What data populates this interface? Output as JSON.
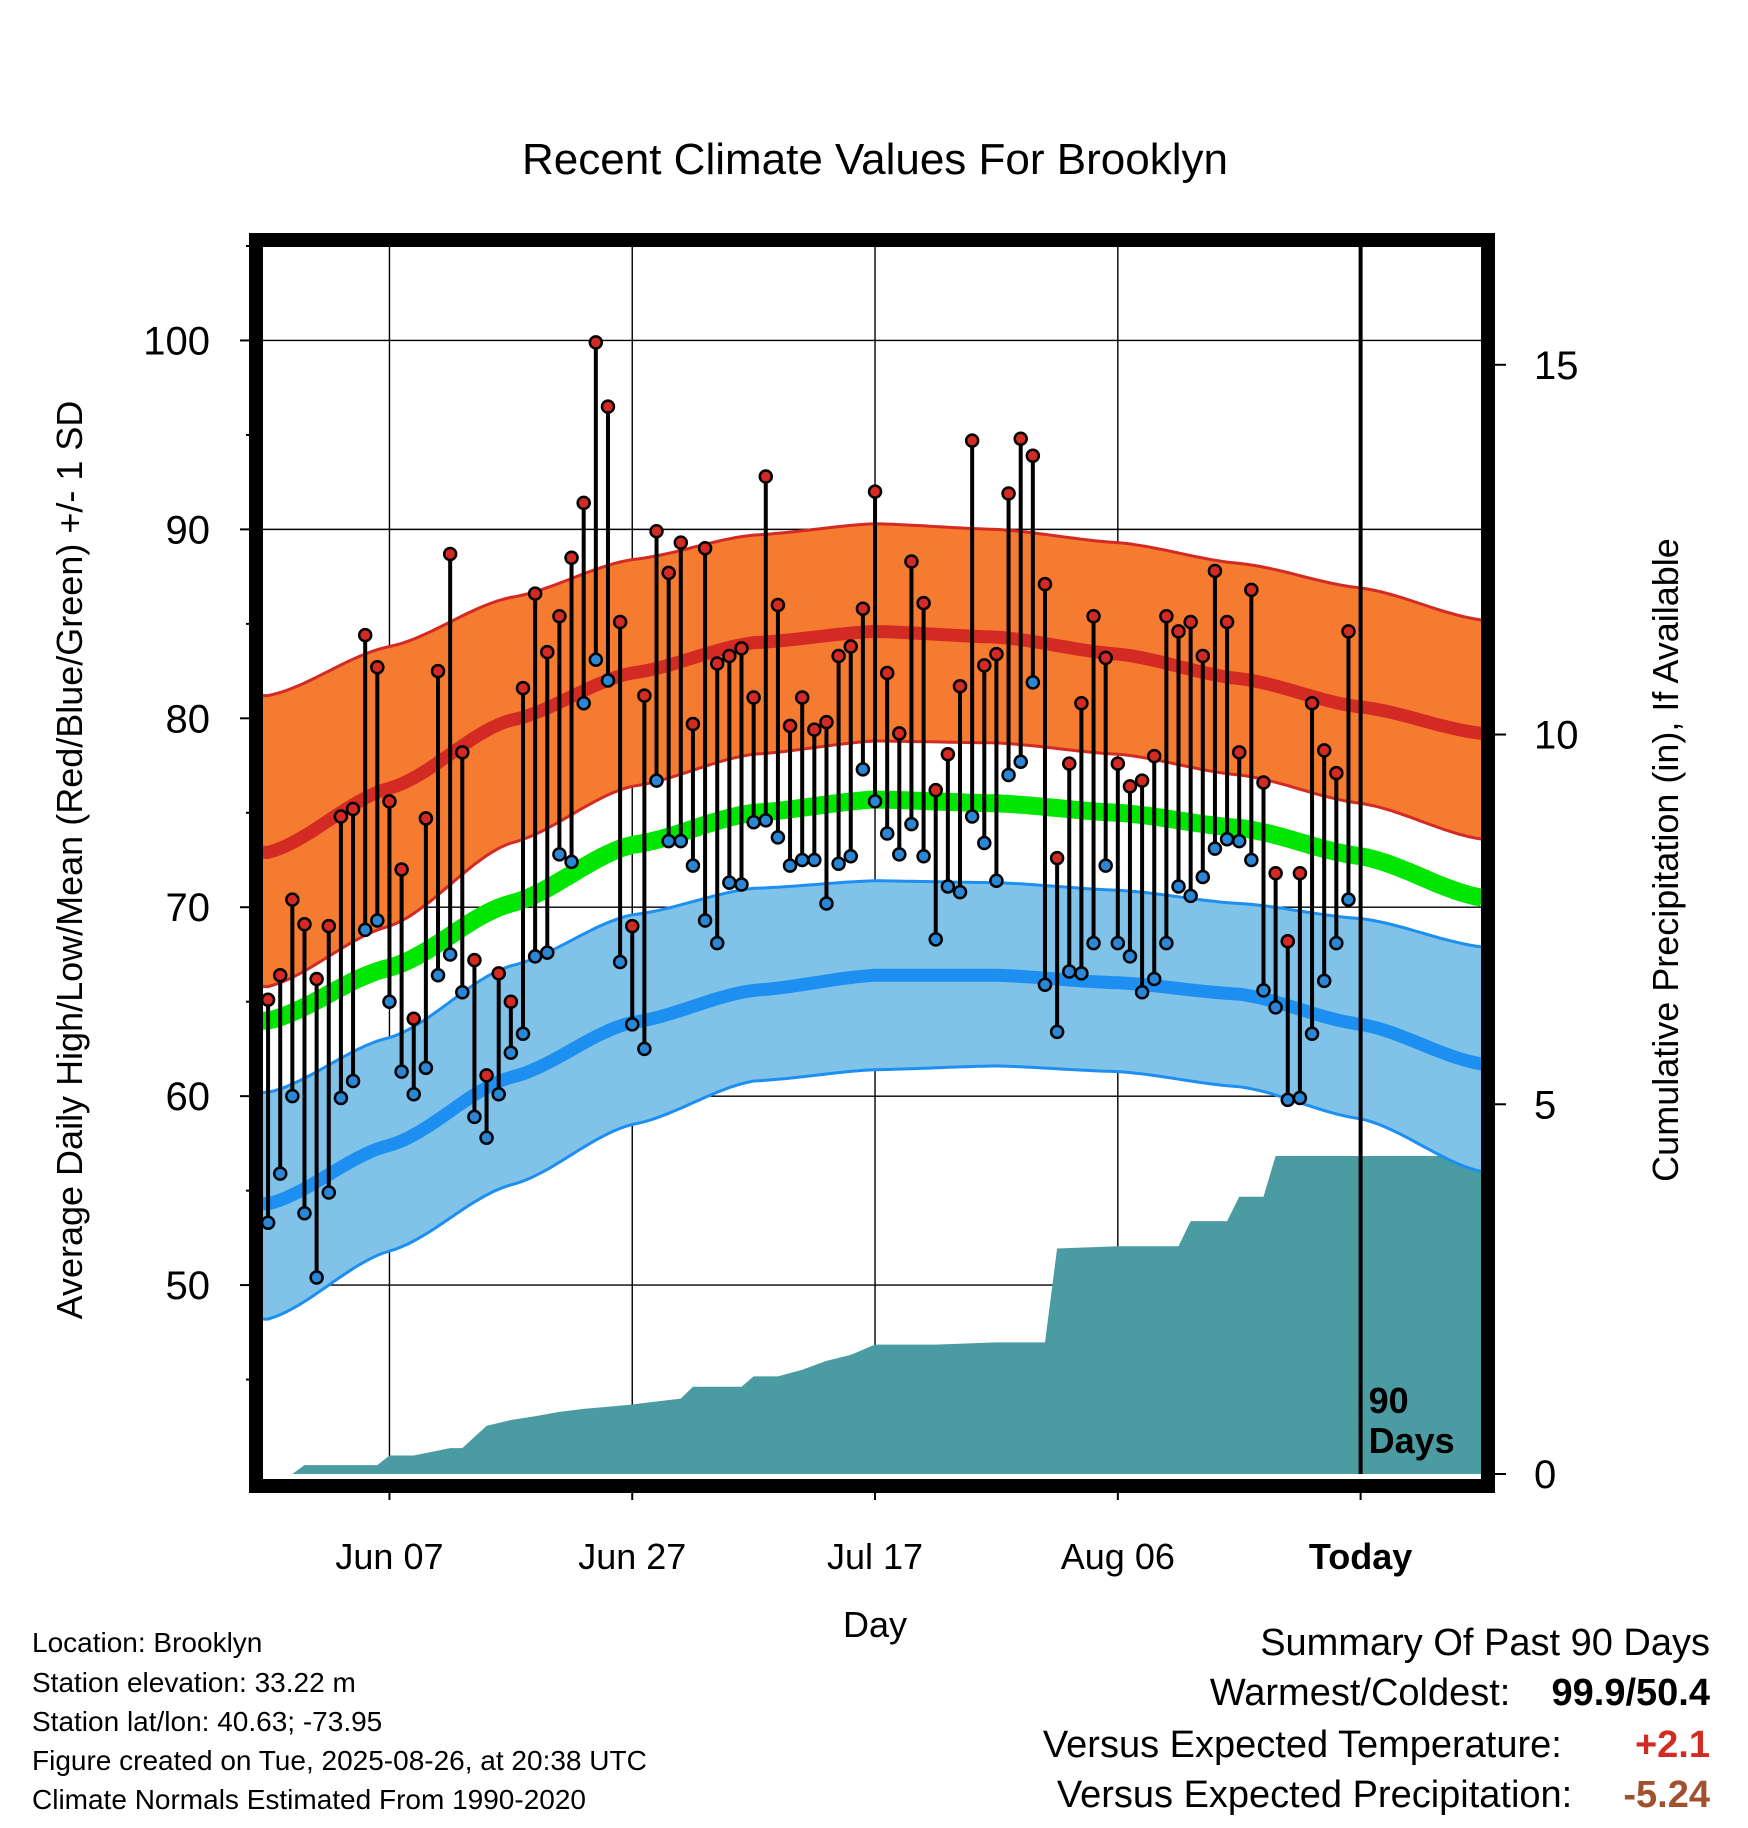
{
  "chart_data": {
    "type": "line",
    "title": "Recent Climate Values For Brooklyn",
    "xlabel": "Day",
    "ylabel": "Average Daily High/Low/Mean (Red/Blue/Green) +/- 1 SD",
    "y2label": "Cumulative Precipitation (in), If Available",
    "x_tick_labels": [
      "Jun 07",
      "Jun 27",
      "Jul 17",
      "Aug 06",
      "Today"
    ],
    "x_tick_days": [
      11,
      31,
      51,
      71,
      91
    ],
    "y_ticks": [
      50,
      60,
      70,
      80,
      90,
      100
    ],
    "y_tick_labels": [
      "50",
      "60",
      "70",
      "80",
      "90",
      "100"
    ],
    "ylim": [
      40,
      105
    ],
    "y2_ticks": [
      0,
      5,
      10,
      15
    ],
    "y2_tick_labels": [
      "0",
      "5",
      "10",
      "15"
    ],
    "y2lim": [
      0,
      15.2
    ],
    "xlim": [
      0.5,
      101
    ],
    "today_marker_label": "90 Days",
    "grid": true,
    "colors": {
      "high_band": "#f47b30",
      "high_mean": "#d42a24",
      "high_edge": "#d42a24",
      "low_band": "#80c2e8",
      "low_mean": "#1d8ff0",
      "low_edge": "#1d8ff0",
      "mean_line": "#00e600",
      "precip": "#4a9ba2",
      "high_point": "#d42a24",
      "low_point": "#2a87d6",
      "frame": "#000000"
    },
    "normals": {
      "days": [
        1,
        11,
        21,
        31,
        41,
        51,
        61,
        71,
        81,
        91,
        101
      ],
      "high_mean": [
        72.9,
        76.3,
        79.9,
        82.4,
        84.0,
        84.6,
        84.3,
        83.4,
        82.1,
        80.6,
        79.2
      ],
      "high_upper": [
        81.2,
        83.8,
        86.4,
        88.4,
        89.7,
        90.3,
        90.0,
        89.3,
        88.2,
        86.9,
        85.2
      ],
      "high_lower": [
        65.8,
        69.0,
        73.4,
        76.4,
        78.1,
        78.8,
        78.7,
        78.1,
        77.0,
        75.5,
        73.6
      ],
      "mean": [
        64.0,
        66.8,
        70.2,
        73.3,
        75.0,
        75.7,
        75.5,
        75.0,
        74.2,
        72.7,
        70.5
      ],
      "low_mean": [
        54.3,
        57.4,
        61.0,
        63.9,
        65.6,
        66.4,
        66.4,
        66.0,
        65.4,
        63.8,
        61.7
      ],
      "low_upper": [
        60.2,
        63.1,
        66.9,
        69.6,
        71.0,
        71.4,
        71.3,
        70.9,
        70.2,
        69.4,
        67.9
      ],
      "low_lower": [
        48.2,
        51.8,
        55.3,
        58.5,
        60.8,
        61.4,
        61.6,
        61.3,
        60.5,
        58.8,
        56.0
      ]
    },
    "series": [
      {
        "name": "High",
        "values": [
          65.1,
          66.4,
          70.4,
          69.1,
          66.2,
          69.0,
          74.8,
          75.2,
          84.4,
          82.7,
          75.6,
          72.0,
          64.1,
          74.7,
          82.5,
          88.7,
          78.2,
          67.2,
          61.1,
          66.5,
          65.0,
          81.6,
          86.6,
          83.5,
          85.4,
          88.5,
          91.4,
          99.9,
          96.5,
          85.1,
          69.0,
          81.2,
          89.9,
          87.7,
          89.3,
          79.7,
          89.0,
          82.9,
          83.3,
          83.7,
          81.1,
          92.8,
          86.0,
          79.6,
          81.1,
          79.4,
          79.8,
          83.3,
          83.8,
          85.8,
          92.0,
          82.4,
          79.2,
          88.3,
          86.1,
          76.2,
          78.1,
          81.7,
          94.7,
          82.8,
          83.4,
          91.9,
          94.8,
          93.9,
          87.1,
          72.6,
          77.6,
          80.8,
          85.4,
          83.2,
          77.6,
          76.4,
          76.7,
          78.0,
          85.4,
          84.6,
          85.1,
          83.3,
          87.8,
          85.1,
          78.2,
          86.8,
          76.6,
          71.8,
          68.2,
          71.8,
          80.8,
          78.3,
          77.1,
          84.6
        ]
      },
      {
        "name": "Low",
        "values": [
          53.3,
          55.9,
          60.0,
          53.8,
          50.4,
          54.9,
          59.9,
          60.8,
          68.8,
          69.3,
          65.0,
          61.3,
          60.1,
          61.5,
          66.4,
          67.5,
          65.5,
          58.9,
          57.8,
          60.1,
          62.3,
          63.3,
          67.4,
          67.6,
          72.8,
          72.4,
          80.8,
          83.1,
          82.0,
          67.1,
          63.8,
          62.5,
          76.7,
          73.5,
          73.5,
          72.2,
          69.3,
          68.1,
          71.3,
          71.2,
          74.5,
          74.6,
          73.7,
          72.2,
          72.5,
          72.5,
          70.2,
          72.3,
          72.7,
          77.3,
          75.6,
          73.9,
          72.8,
          74.4,
          72.7,
          68.3,
          71.1,
          70.8,
          74.8,
          73.4,
          71.4,
          77.0,
          77.7,
          81.9,
          65.9,
          63.4,
          66.6,
          66.5,
          68.1,
          72.2,
          68.1,
          67.4,
          65.5,
          66.2,
          68.1,
          71.1,
          70.6,
          71.6,
          73.1,
          73.6,
          73.5,
          72.5,
          65.6,
          64.7,
          59.8,
          59.9,
          63.3,
          66.1,
          68.1,
          70.4
        ]
      }
    ],
    "precip_cumulative": {
      "days": [
        1,
        3,
        4,
        10,
        11,
        13,
        16,
        17,
        19,
        21,
        23,
        25,
        27,
        29,
        31,
        33,
        35,
        36,
        40,
        41,
        43,
        45,
        47,
        49,
        51,
        56,
        61,
        65,
        66,
        71,
        76,
        77,
        80,
        81,
        83,
        84,
        101
      ],
      "values": [
        0.0,
        0.0,
        0.12,
        0.12,
        0.25,
        0.25,
        0.35,
        0.35,
        0.65,
        0.73,
        0.78,
        0.84,
        0.88,
        0.91,
        0.94,
        0.98,
        1.02,
        1.18,
        1.18,
        1.32,
        1.32,
        1.41,
        1.53,
        1.61,
        1.75,
        1.75,
        1.78,
        1.78,
        3.05,
        3.08,
        3.08,
        3.42,
        3.42,
        3.75,
        3.75,
        4.3,
        4.3
      ]
    }
  },
  "footer": {
    "location": "Location: Brooklyn",
    "elevation": "Station elevation: 33.22 m",
    "latlon": "Station lat/lon: 40.63; -73.95",
    "created": "Figure created on Tue, 2025-08-26, at 20:38 UTC",
    "normals": "Climate Normals Estimated From 1990-2020"
  },
  "summary": {
    "heading": "Summary Of Past 90 Days",
    "warmest_label": "Warmest/Coldest:",
    "warmest_value": "99.9",
    "coldest_value": "50.4",
    "temp_label": "Versus Expected Temperature:",
    "temp_value": "+2.1",
    "temp_color": "#d42a24",
    "precip_label": "Versus Expected Precipitation:",
    "precip_value": "-5.24",
    "precip_color": "#a0522d"
  }
}
